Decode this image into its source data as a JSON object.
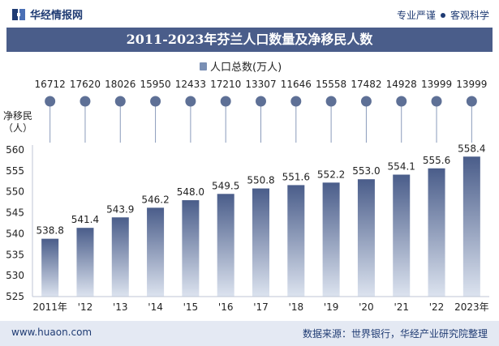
{
  "header": {
    "logo_text": "华经情报网",
    "tagline_left": "专业严谨",
    "tagline_right": "客观科学"
  },
  "title": "2011-2023年芬兰人口数量及净移民人数",
  "legend": {
    "label": "人口总数(万人)"
  },
  "left_axis_label_line1": "净移民",
  "left_axis_label_line2": "（人）",
  "footer": {
    "url": "www.huaon.com",
    "source": "数据来源：世界银行，华经产业研究院整理"
  },
  "colors": {
    "title_bg": "#4a5d8a",
    "bar_top": "#4a5d8a",
    "bar_bottom": "#dce3ef",
    "lollipop_dot": "#5e7096",
    "footer_bg": "#e4e9f3",
    "brand": "#1f3b73"
  },
  "chart_data": {
    "type": "bar",
    "categories": [
      "2011年",
      "'12",
      "'13",
      "'14",
      "'15",
      "'16",
      "'17",
      "'18",
      "'19",
      "'20",
      "'21",
      "'22",
      "2023年"
    ],
    "series": [
      {
        "name": "人口总数(万人)",
        "type": "bar",
        "values": [
          538.8,
          541.4,
          543.9,
          546.2,
          548.0,
          549.5,
          550.8,
          551.6,
          552.2,
          553.0,
          554.1,
          555.6,
          558.4
        ]
      },
      {
        "name": "",
        "type": "lollipop",
        "values": [
          16712,
          17620,
          18026,
          15950,
          12433,
          17210,
          13307,
          11646,
          15558,
          17482,
          14928,
          13999,
          13999
        ]
      }
    ],
    "y_ticks": [
      525,
      530,
      535,
      540,
      545,
      550,
      555,
      560
    ],
    "ylim": [
      525,
      560
    ],
    "grid": false,
    "legend_position": "top-center"
  }
}
